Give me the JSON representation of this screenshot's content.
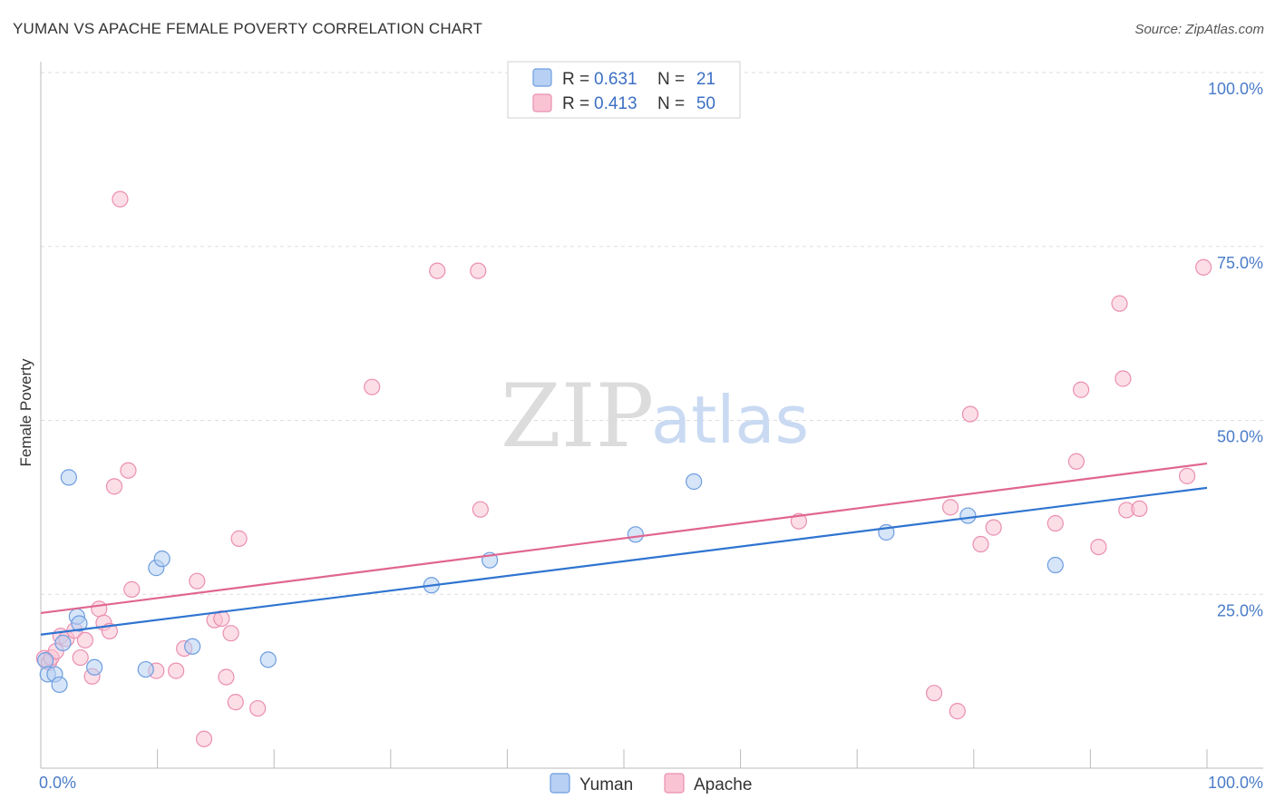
{
  "title": "YUMAN VS APACHE FEMALE POVERTY CORRELATION CHART",
  "source": "Source: ZipAtlas.com",
  "watermark": {
    "zip": "ZIP",
    "atlas": "atlas"
  },
  "colors": {
    "yuman_fill": "#b7d0f3",
    "yuman_stroke": "#6d9de0",
    "yuman_line": "#2f74d0",
    "apache_fill": "#f9c3d4",
    "apache_stroke": "#ea8fb0",
    "apache_line": "#e0668f",
    "grid": "#dddddd",
    "tick_text": "#4a7cc9"
  },
  "legend": {
    "rows": [
      {
        "r_label": "R =",
        "r_value": "0.631",
        "n_label": "N =",
        "n_value": "21"
      },
      {
        "r_label": "R =",
        "r_value": "0.413",
        "n_label": "N =",
        "n_value": "50"
      }
    ]
  },
  "chart_data": {
    "type": "scatter",
    "title": "YUMAN VS APACHE FEMALE POVERTY CORRELATION CHART",
    "xlabel": "",
    "ylabel": "Female Poverty",
    "xlim": [
      0,
      100
    ],
    "ylim": [
      0,
      100
    ],
    "x_tick_labels": [
      "0.0%",
      "100.0%"
    ],
    "y_ticks": [
      25,
      50,
      75,
      100
    ],
    "y_tick_labels": [
      "25.0%",
      "50.0%",
      "75.0%",
      "100.0%"
    ],
    "grid": true,
    "legend_position": "top-center",
    "series": [
      {
        "name": "Yuman",
        "trend": [
          [
            0,
            19.2
          ],
          [
            100,
            40.3
          ]
        ],
        "points": [
          [
            0.4,
            15.5
          ],
          [
            0.6,
            13.5
          ],
          [
            1.2,
            13.5
          ],
          [
            1.6,
            12.0
          ],
          [
            1.9,
            18.0
          ],
          [
            2.4,
            41.8
          ],
          [
            3.1,
            21.8
          ],
          [
            3.3,
            20.8
          ],
          [
            4.6,
            14.5
          ],
          [
            9.0,
            14.2
          ],
          [
            9.9,
            28.8
          ],
          [
            10.4,
            30.1
          ],
          [
            13.0,
            17.5
          ],
          [
            19.5,
            15.6
          ],
          [
            33.5,
            26.3
          ],
          [
            38.5,
            29.9
          ],
          [
            51.0,
            33.6
          ],
          [
            56.0,
            41.2
          ],
          [
            72.5,
            33.9
          ],
          [
            79.5,
            36.3
          ],
          [
            87.0,
            29.2
          ]
        ]
      },
      {
        "name": "Apache",
        "trend": [
          [
            0,
            22.3
          ],
          [
            100,
            43.8
          ]
        ],
        "points": [
          [
            0.3,
            15.8
          ],
          [
            0.7,
            15.2
          ],
          [
            0.9,
            15.9
          ],
          [
            1.3,
            16.8
          ],
          [
            1.7,
            19.0
          ],
          [
            2.2,
            18.6
          ],
          [
            2.9,
            19.8
          ],
          [
            3.4,
            15.9
          ],
          [
            3.8,
            18.4
          ],
          [
            4.4,
            13.2
          ],
          [
            5.0,
            22.9
          ],
          [
            5.4,
            20.9
          ],
          [
            5.9,
            19.7
          ],
          [
            6.3,
            40.5
          ],
          [
            6.8,
            81.8
          ],
          [
            7.5,
            42.8
          ],
          [
            7.8,
            25.7
          ],
          [
            9.9,
            14.0
          ],
          [
            11.6,
            14.0
          ],
          [
            12.3,
            17.2
          ],
          [
            13.4,
            26.9
          ],
          [
            14.0,
            4.2
          ],
          [
            14.9,
            21.3
          ],
          [
            15.5,
            21.5
          ],
          [
            15.9,
            13.1
          ],
          [
            16.3,
            19.4
          ],
          [
            16.7,
            9.5
          ],
          [
            17.0,
            33.0
          ],
          [
            18.6,
            8.6
          ],
          [
            28.4,
            54.8
          ],
          [
            34.0,
            71.5
          ],
          [
            37.5,
            71.5
          ],
          [
            37.7,
            37.2
          ],
          [
            65.0,
            35.5
          ],
          [
            76.6,
            10.8
          ],
          [
            78.0,
            37.5
          ],
          [
            78.6,
            8.2
          ],
          [
            79.7,
            50.9
          ],
          [
            80.6,
            32.2
          ],
          [
            81.7,
            34.6
          ],
          [
            87.0,
            35.2
          ],
          [
            88.8,
            44.1
          ],
          [
            89.2,
            54.4
          ],
          [
            90.7,
            31.8
          ],
          [
            92.5,
            66.8
          ],
          [
            92.8,
            56.0
          ],
          [
            93.1,
            37.1
          ],
          [
            94.2,
            37.3
          ],
          [
            98.3,
            42.0
          ],
          [
            99.7,
            72.0
          ]
        ]
      }
    ]
  },
  "bottom_legend": {
    "items": [
      {
        "label": "Yuman"
      },
      {
        "label": "Apache"
      }
    ]
  }
}
